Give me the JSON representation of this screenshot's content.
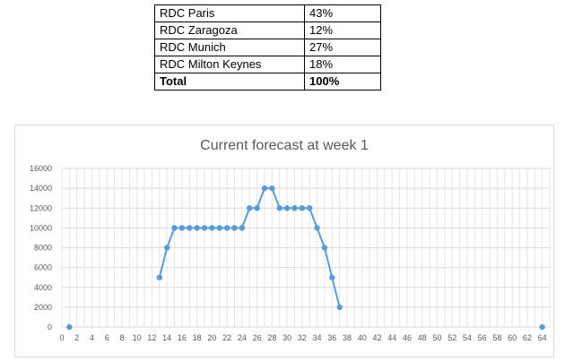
{
  "table": {
    "rows": [
      {
        "site": "RDC Paris",
        "share": "43%"
      },
      {
        "site": "RDC Zaragoza",
        "share": "12%"
      },
      {
        "site": "RDC Munich",
        "share": "27%"
      },
      {
        "site": "RDC Milton Keynes",
        "share": "18%"
      }
    ],
    "total": {
      "site": "Total",
      "share": "100%"
    }
  },
  "chart_data": {
    "type": "scatter",
    "title": "Current forecast at week 1",
    "xlabel": "",
    "ylabel": "",
    "xlim": [
      0,
      65
    ],
    "ylim": [
      0,
      16000
    ],
    "x_ticks": [
      0,
      2,
      4,
      6,
      8,
      10,
      12,
      14,
      16,
      18,
      20,
      22,
      24,
      26,
      28,
      30,
      32,
      34,
      36,
      38,
      40,
      42,
      44,
      46,
      48,
      50,
      52,
      54,
      56,
      58,
      60,
      62,
      64
    ],
    "y_ticks": [
      0,
      2000,
      4000,
      6000,
      8000,
      10000,
      12000,
      14000,
      16000
    ],
    "grid": true,
    "legend": "none",
    "color": "#5b9bd5",
    "series": [
      {
        "points": [
          [
            1,
            0
          ]
        ],
        "connected": false
      },
      {
        "points": [
          [
            13,
            5000
          ],
          [
            14,
            8000
          ],
          [
            15,
            10000
          ],
          [
            16,
            10000
          ],
          [
            17,
            10000
          ],
          [
            18,
            10000
          ],
          [
            19,
            10000
          ],
          [
            20,
            10000
          ],
          [
            21,
            10000
          ],
          [
            22,
            10000
          ],
          [
            23,
            10000
          ],
          [
            24,
            10000
          ],
          [
            25,
            12000
          ],
          [
            26,
            12000
          ],
          [
            27,
            14000
          ],
          [
            28,
            14000
          ],
          [
            29,
            12000
          ],
          [
            30,
            12000
          ],
          [
            31,
            12000
          ],
          [
            32,
            12000
          ],
          [
            33,
            12000
          ],
          [
            34,
            10000
          ],
          [
            35,
            8000
          ],
          [
            36,
            5000
          ],
          [
            37,
            2000
          ]
        ],
        "connected": true
      },
      {
        "points": [
          [
            64,
            0
          ]
        ],
        "connected": false
      }
    ]
  }
}
